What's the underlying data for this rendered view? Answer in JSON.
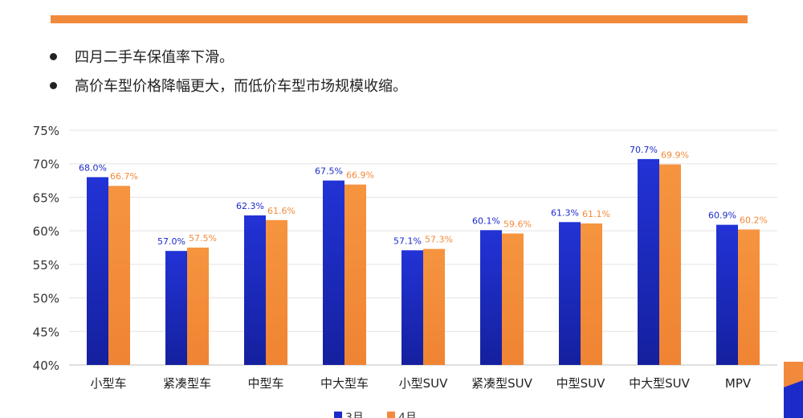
{
  "bullets": [
    "四月二手车保值率下滑。",
    "高价车型价格降幅更大，而低价车型市场规模收缩。"
  ],
  "colors": {
    "accent_bar": "#F28A3C",
    "series_blue": "#1C2AC9",
    "series_orange": "#F28A3C"
  },
  "chart_data": {
    "type": "bar",
    "title": "",
    "xlabel": "",
    "ylabel": "",
    "ylim": [
      40,
      75
    ],
    "yticks": [
      40,
      45,
      50,
      55,
      60,
      65,
      70,
      75
    ],
    "ytick_suffix": "%",
    "grid": "horizontal",
    "legend_position": "bottom",
    "categories": [
      "小型车",
      "紧凑型车",
      "中型车",
      "中大型车",
      "小型SUV",
      "紧凑型SUV",
      "中型SUV",
      "中大型SUV",
      "MPV"
    ],
    "series": [
      {
        "name": "3月",
        "values": [
          68.0,
          57.0,
          62.3,
          67.5,
          57.1,
          60.1,
          61.3,
          70.7,
          60.9
        ]
      },
      {
        "name": "4月",
        "values": [
          66.7,
          57.5,
          61.6,
          66.9,
          57.3,
          59.6,
          61.1,
          69.9,
          60.2
        ]
      }
    ]
  }
}
